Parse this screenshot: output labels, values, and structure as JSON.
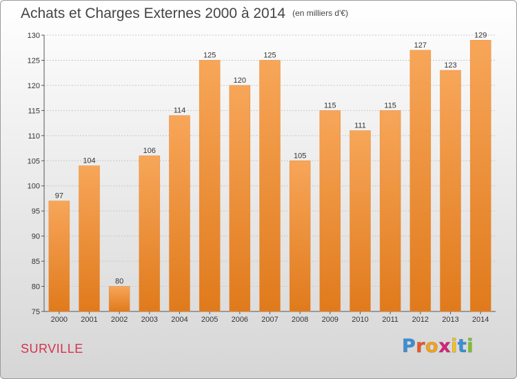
{
  "chart_data": {
    "type": "bar",
    "title": "Achats et Charges Externes 2000 à 2014",
    "subtitle": "(en milliers d'€)",
    "categories": [
      "2000",
      "2001",
      "2002",
      "2003",
      "2004",
      "2005",
      "2006",
      "2007",
      "2008",
      "2009",
      "2010",
      "2011",
      "2012",
      "2013",
      "2014"
    ],
    "values": [
      97,
      104,
      80,
      106,
      114,
      125,
      120,
      125,
      105,
      115,
      111,
      115,
      127,
      123,
      129
    ],
    "ylim": [
      75,
      130
    ],
    "yticks": [
      75,
      80,
      85,
      90,
      95,
      100,
      105,
      110,
      115,
      120,
      125,
      130
    ],
    "grid": true,
    "bar_color": "#f0892e"
  },
  "footer": {
    "commune": "SURVILLE"
  },
  "logo": {
    "letters": [
      "P",
      "r",
      "o",
      "x",
      "i",
      "t",
      "i"
    ],
    "colors": [
      "#3a8fd6",
      "#e8572b",
      "#f3a31b",
      "#d6237a",
      "#f3c21b",
      "#3a8fd6",
      "#7cbf2c"
    ]
  }
}
